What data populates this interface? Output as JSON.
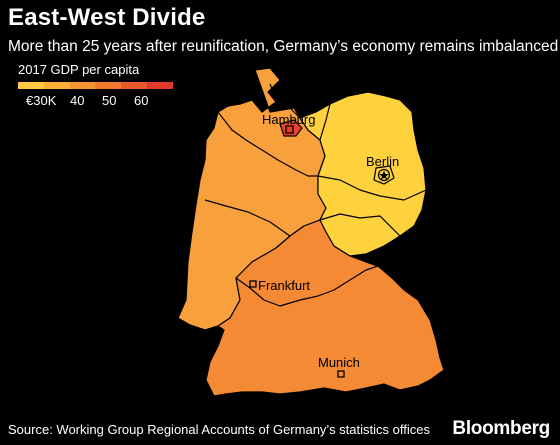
{
  "header": {
    "title": "East-West Divide",
    "subtitle": "More than 25 years after reunification, Germany’s economy remains imbalanced"
  },
  "legend": {
    "title": "2017 GDP per capita",
    "colors": [
      "#ffc840",
      "#fcad35",
      "#f79430",
      "#f27a2c",
      "#ec5a2c",
      "#e03a2d"
    ],
    "labels": [
      "€30K",
      "40",
      "50",
      "60"
    ]
  },
  "map": {
    "colors": {
      "east_low": "#fdd23c",
      "west_mid": "#f8a13c",
      "south_high": "#f58a34",
      "city_top": "#e8422d",
      "border": "#000000"
    },
    "cities": [
      {
        "id": "hamburg",
        "label": "Hamburg",
        "marker": "square"
      },
      {
        "id": "berlin",
        "label": "Berlin",
        "marker": "star"
      },
      {
        "id": "frankfurt",
        "label": "Frankfurt",
        "marker": "square"
      },
      {
        "id": "munich",
        "label": "Munich",
        "marker": "square"
      }
    ]
  },
  "footer": {
    "source": "Source: Working Group Regional Accounts of Germany’s statistics offices",
    "brand": "Bloomberg"
  }
}
